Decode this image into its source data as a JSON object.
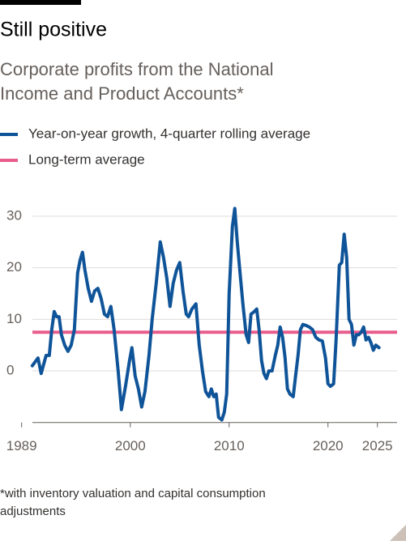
{
  "chart_data": {
    "type": "line",
    "title": "Still positive",
    "subtitle": [
      "Corporate profits from the National",
      "Income and Product Accounts*"
    ],
    "footnote": [
      "*with inventory valuation and capital consumption",
      "adjustments"
    ],
    "xlim": [
      1988.7,
      2026.5
    ],
    "xticks": [
      1989,
      2000,
      2010,
      2020,
      2025
    ],
    "ylim": [
      -10,
      32
    ],
    "yticks": [
      0,
      10,
      20,
      30
    ],
    "grid": true,
    "series": [
      {
        "name": "Year-on-year growth, 4-quarter rolling average",
        "color": "#0f5499",
        "x": [
          1990.08,
          1990.66,
          1990.98,
          1991.48,
          1991.8,
          1992.05,
          1992.3,
          1992.54,
          1992.79,
          1993.03,
          1993.36,
          1993.69,
          1994.02,
          1994.34,
          1994.67,
          1994.92,
          1995.16,
          1995.41,
          1995.74,
          1996.07,
          1996.39,
          1996.72,
          1997.05,
          1997.38,
          1997.7,
          1998.03,
          1998.36,
          1998.77,
          1999.1,
          1999.51,
          1999.92,
          2000.16,
          2000.49,
          2000.82,
          2001.15,
          2001.48,
          2001.89,
          2002.21,
          2002.62,
          2003.03,
          2003.36,
          2003.69,
          2004.02,
          2004.34,
          2004.67,
          2005.0,
          2005.33,
          2005.66,
          2005.9,
          2006.23,
          2006.64,
          2006.97,
          2007.3,
          2007.62,
          2007.95,
          2008.2,
          2008.44,
          2008.69,
          2008.93,
          2009.26,
          2009.51,
          2009.75,
          2010.0,
          2010.33,
          2010.57,
          2010.82,
          2011.15,
          2011.39,
          2011.72,
          2011.97,
          2012.21,
          2012.54,
          2012.79,
          2013.03,
          2013.28,
          2013.52,
          2013.77,
          2014.02,
          2014.34,
          2014.67,
          2014.92,
          2015.16,
          2015.41,
          2015.66,
          2015.9,
          2016.15,
          2016.48,
          2016.72,
          2016.97,
          2017.21,
          2017.46,
          2017.79,
          2018.11,
          2018.44,
          2018.77,
          2019.1,
          2019.43,
          2019.75,
          2020.0,
          2020.25,
          2020.57,
          2020.82,
          2021.15,
          2021.39,
          2021.64,
          2021.89,
          2022.13,
          2022.38,
          2022.62,
          2022.87,
          2023.11,
          2023.36,
          2023.61,
          2023.85,
          2024.1,
          2024.34,
          2024.59,
          2024.84,
          2025.16
        ],
        "values": [
          1,
          2.5,
          -0.5,
          3,
          3,
          8,
          11.5,
          10.5,
          10.5,
          7,
          5,
          3.8,
          5,
          8,
          19,
          21.5,
          23,
          19.5,
          16,
          13.5,
          15.5,
          16,
          14,
          11,
          10.5,
          12.5,
          8,
          0,
          -7.5,
          -3,
          2,
          4.5,
          -1,
          -3.5,
          -7,
          -4,
          3,
          10,
          17,
          25,
          22,
          18,
          12.5,
          17,
          19.5,
          21,
          15.5,
          11,
          10.5,
          12,
          13,
          5,
          0,
          -4,
          -5,
          -3.5,
          -5,
          -4.5,
          -9,
          -9.5,
          -8,
          -4.5,
          15,
          28,
          31.5,
          25,
          18,
          13,
          7,
          5.5,
          11,
          11.5,
          12,
          8,
          2,
          -0.5,
          -1.5,
          0,
          0,
          3,
          5,
          8.5,
          6.5,
          2.5,
          -3.5,
          -4.5,
          -5,
          -1,
          3,
          8,
          9,
          8.8,
          8.5,
          8,
          6.5,
          6,
          5.8,
          2.5,
          -2.5,
          -3,
          -2.5,
          6,
          20.5,
          21,
          26.5,
          22,
          10,
          9,
          5,
          7,
          7,
          7.5,
          8.5,
          6,
          6.5,
          5.5,
          4,
          5,
          4.5
        ]
      }
    ],
    "hlines": [
      {
        "name": "Long-term average",
        "color": "#e95d8c",
        "value": 7.5
      }
    ]
  }
}
